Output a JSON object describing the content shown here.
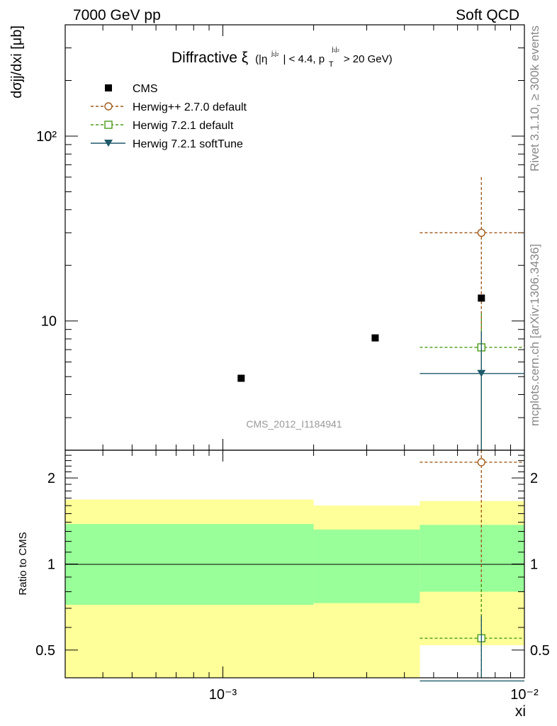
{
  "header": {
    "left": "7000 GeV pp",
    "right": "Soft QCD"
  },
  "side_labels": {
    "rivet": "Rivet 3.1.10, ≥ 300k events",
    "mcplots": "mcplots.cern.ch [arXiv:1306.3436]"
  },
  "chart_data": [
    {
      "type": "scatter",
      "title_main": "Diffractive ξ",
      "title_cut": "(|η",
      "title_cut_sup": "j₁j₂",
      "title_mid": "| < 4.4, p",
      "title_sub": "T",
      "title_sup2": "j₁j₂",
      "title_end": " > 20 GeV)",
      "ylabel": "dσjj/dxi [μb]",
      "xscale": "log",
      "yscale": "log",
      "xlim": [
        0.0003,
        0.01
      ],
      "ylim": [
        2,
        400
      ],
      "ytick_labels": [
        "10²",
        "10"
      ],
      "watermark": "CMS_2012_I1184941",
      "legend": [
        "CMS",
        "Herwig++ 2.7.0 default",
        "Herwig 7.2.1 default",
        "Herwig 7.2.1 softTune"
      ],
      "series": [
        {
          "name": "CMS",
          "color": "#000000",
          "marker": "filled-square",
          "points": [
            {
              "x": 0.00115,
              "y": 4.9
            },
            {
              "x": 0.0032,
              "y": 8.1
            },
            {
              "x": 0.0072,
              "y": 13.3
            }
          ]
        },
        {
          "name": "Herwig++ 2.7.0 default",
          "color": "#a0591a",
          "marker": "open-circle",
          "points": [
            {
              "x": 0.0072,
              "xlo": 0.0045,
              "xhi": 0.01,
              "y": 30,
              "ylo": 0.5,
              "yhi": 60
            }
          ]
        },
        {
          "name": "Herwig 7.2.1 default",
          "color": "#4a9a16",
          "marker": "open-square",
          "points": [
            {
              "x": 0.0072,
              "xlo": 0.0045,
              "xhi": 0.01,
              "y": 7.2,
              "ylo": 0.5,
              "yhi": 11
            }
          ]
        },
        {
          "name": "Herwig 7.2.1 softTune",
          "color": "#1f5a6a",
          "marker": "filled-triangle-down",
          "points": [
            {
              "x": 0.0072,
              "xlo": 0.0045,
              "xhi": 0.01,
              "y": 5.2,
              "ylo": 0.5,
              "yhi": 8.8
            }
          ]
        }
      ]
    },
    {
      "type": "scatter",
      "ylabel": "Ratio to CMS",
      "xlabel": "xi",
      "xscale": "log",
      "yscale": "log",
      "xlim": [
        0.0003,
        0.01
      ],
      "ylim": [
        0.4,
        2.5
      ],
      "xtick_labels": [
        "10⁻³",
        "10⁻²"
      ],
      "ytick_labels": [
        "2",
        "1",
        "0.5"
      ],
      "bands": [
        {
          "x": [
            0.0003,
            0.002
          ],
          "yellow": [
            0.35,
            1.68
          ],
          "green": [
            0.72,
            1.38
          ]
        },
        {
          "x": [
            0.002,
            0.0045
          ],
          "yellow": [
            0.35,
            1.6
          ],
          "green": [
            0.73,
            1.32
          ]
        },
        {
          "x": [
            0.0045,
            0.01
          ],
          "yellow": [
            0.52,
            1.66
          ],
          "green": [
            0.8,
            1.37
          ]
        }
      ],
      "series": [
        {
          "name": "Herwig++ 2.7.0 default",
          "color": "#a0591a",
          "marker": "open-circle",
          "points": [
            {
              "x": 0.0072,
              "xlo": 0.0045,
              "xhi": 0.01,
              "y": 2.27,
              "ylo": 0.4,
              "yhi": 2.5
            }
          ]
        },
        {
          "name": "Herwig 7.2.1 default",
          "color": "#4a9a16",
          "marker": "open-square",
          "points": [
            {
              "x": 0.0072,
              "xlo": 0.0045,
              "xhi": 0.01,
              "y": 0.55,
              "ylo": 0.4,
              "yhi": 0.85
            }
          ]
        },
        {
          "name": "Herwig 7.2.1 softTune",
          "color": "#1f5a6a",
          "marker": "filled-triangle-down",
          "points": [
            {
              "x": 0.0072,
              "xlo": 0.0045,
              "xhi": 0.01,
              "y": 0.39,
              "ylo": 0.38,
              "yhi": 0.66
            }
          ]
        }
      ]
    }
  ]
}
